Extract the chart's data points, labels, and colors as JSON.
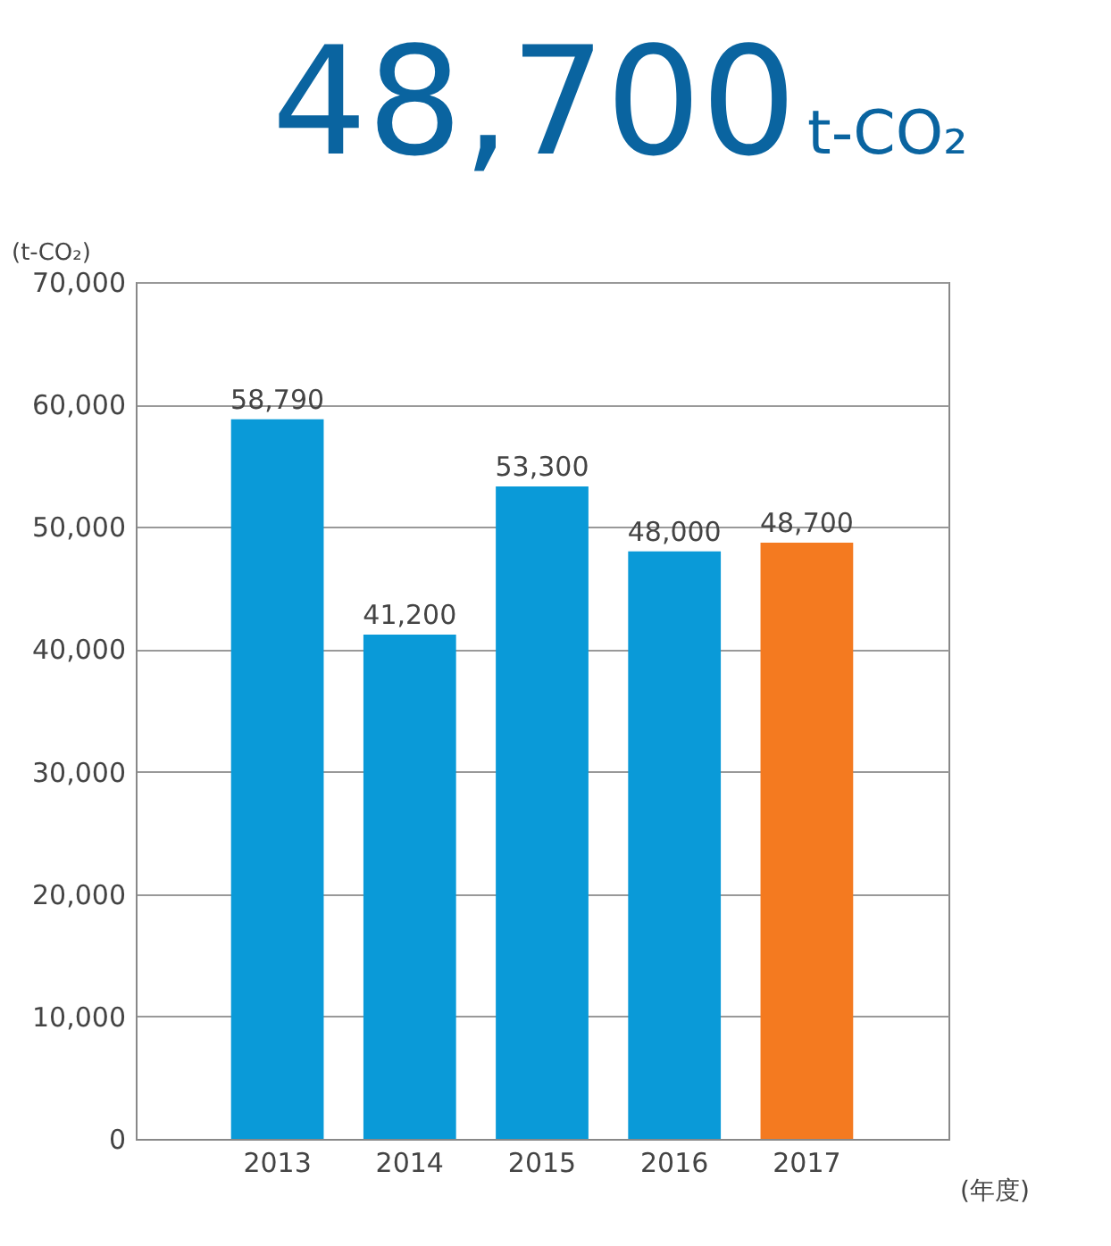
{
  "chart_data": {
    "type": "bar",
    "title": "48,700",
    "subtitle": "t-CO₂",
    "categories": [
      "2013",
      "2014",
      "2015",
      "2016",
      "2017"
    ],
    "values": [
      58790,
      41200,
      53300,
      48000,
      48700
    ],
    "value_labels": [
      "58,790",
      "41,200",
      "53,300",
      "48,000",
      "48,700"
    ],
    "colors": [
      "#0a9ad8",
      "#0a9ad8",
      "#0a9ad8",
      "#0a9ad8",
      "#f47a20"
    ],
    "ylabel": "(t-CO₂)",
    "xlabel": "(年度)",
    "ylim": [
      0,
      70000
    ],
    "yticks": [
      0,
      {
        "value": 10000,
        "label": "10,000"
      },
      {
        "value": 20000,
        "label": "20,000"
      },
      {
        "value": 30000,
        "label": "30,000"
      },
      {
        "value": 40000,
        "label": "40,000"
      },
      {
        "value": 50000,
        "label": "50,000"
      },
      {
        "value": 60000,
        "label": "60,000"
      },
      {
        "value": 70000,
        "label": "70,000"
      }
    ],
    "grid": "y"
  }
}
